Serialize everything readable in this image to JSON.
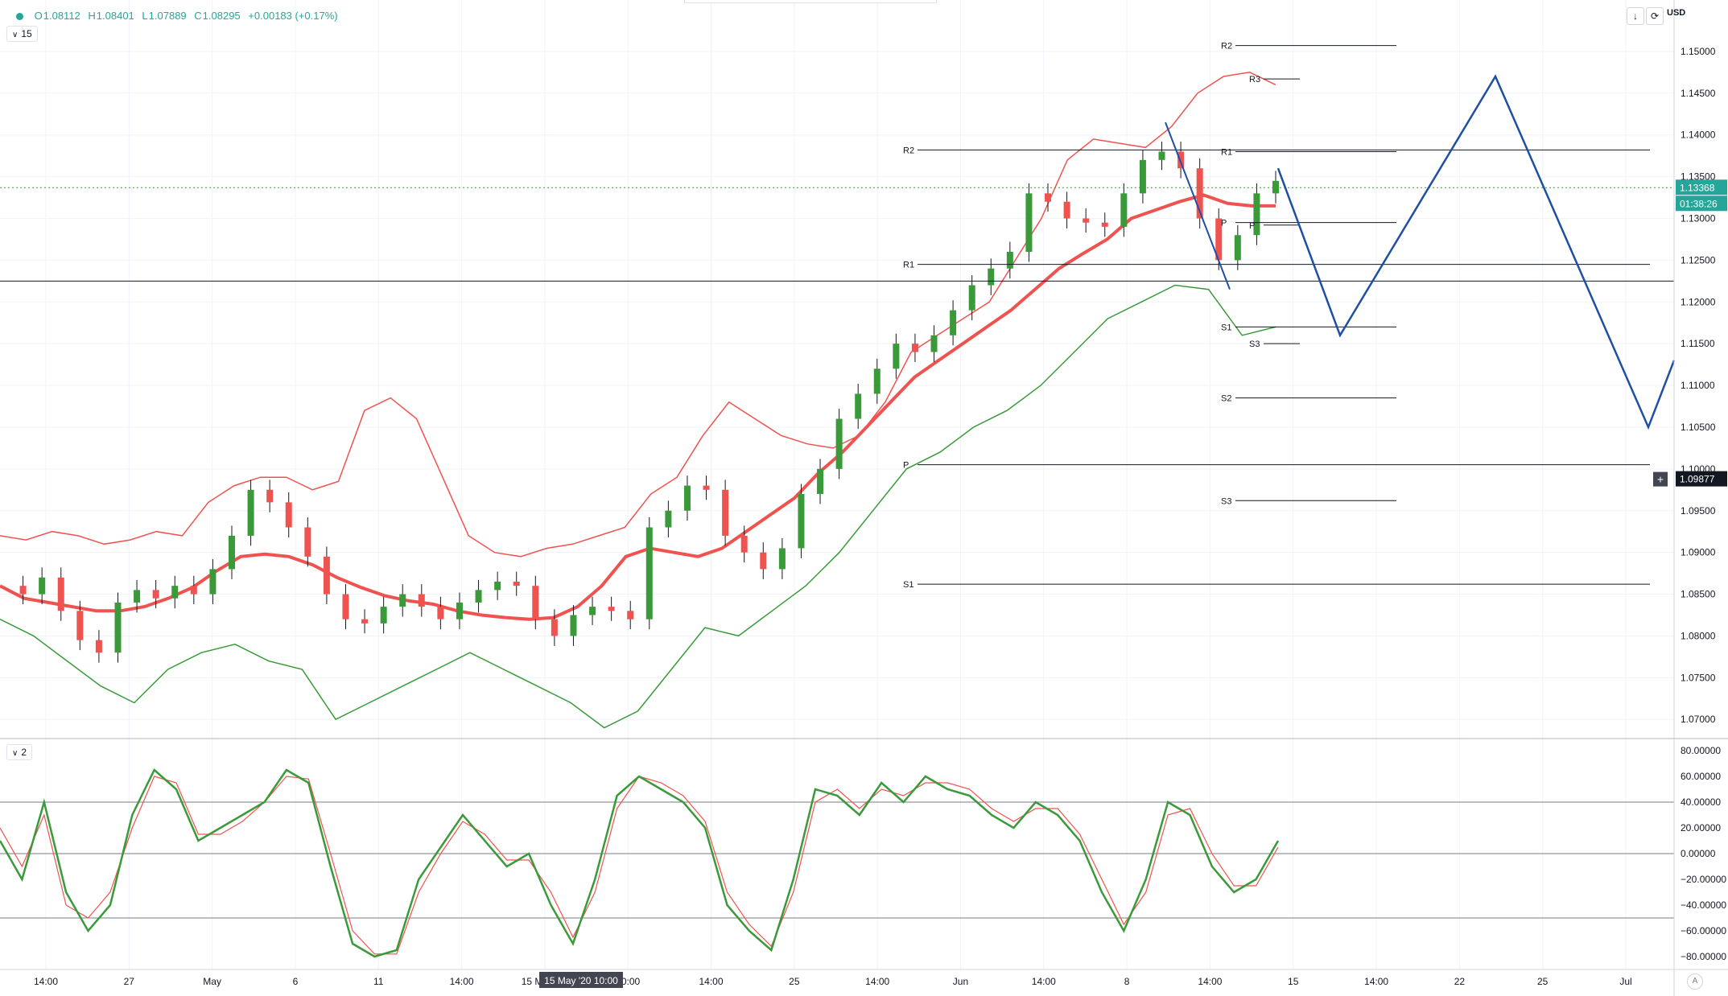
{
  "legend": {
    "open_label": "O",
    "open": "1.08112",
    "high_label": "H",
    "high": "1.08401",
    "low_label": "L",
    "low": "1.07889",
    "close_label": "C",
    "close": "1.08295",
    "change": "+0.00183 (+0.17%)"
  },
  "main_pane_label": "15",
  "osc_pane_label": "2",
  "currency": "USD",
  "toolbar": {
    "arrow_icon": "arrow-down-icon",
    "compare_icon": "compare-icon"
  },
  "price_badge": {
    "price": "1.13368",
    "countdown": "01:38:26",
    "color": "#26a69a"
  },
  "crosshair_badge": {
    "price": "1.09877",
    "color": "#131722"
  },
  "auto_label": "A",
  "colors": {
    "bull": "#3a9a3a",
    "bear": "#ef5350",
    "projection": "#1f4fa3",
    "upper_band": "#ef5350",
    "lower_band": "#3a9a3a"
  },
  "chart_data": [
    {
      "type": "candlestick",
      "ylim": [
        1.068,
        1.155
      ],
      "y_ticks": [
        "1.15000",
        "1.14500",
        "1.14000",
        "1.13500",
        "1.13000",
        "1.12500",
        "1.12000",
        "1.11500",
        "1.11000",
        "1.10500",
        "1.10000",
        "1.09500",
        "1.09000",
        "1.08500",
        "1.08000",
        "1.07500",
        "1.07000"
      ],
      "x_ticks": [
        "14:00",
        "27",
        "May",
        "6",
        "11",
        "14:00",
        "15 May '20",
        "10:00",
        "14:00",
        "25",
        "14:00",
        "Jun",
        "14:00",
        "8",
        "14:00",
        "15",
        "14:00",
        "22",
        "25",
        "Jul"
      ],
      "x_crosshair_label": [
        "15 May '20",
        "10:00"
      ],
      "series": [
        {
          "name": "price",
          "values": [
            1.086,
            1.085,
            1.087,
            1.083,
            1.0795,
            1.078,
            1.084,
            1.0855,
            1.0845,
            1.086,
            1.085,
            1.088,
            1.092,
            1.0975,
            1.096,
            1.093,
            1.0895,
            1.085,
            1.082,
            1.0815,
            1.0835,
            1.085,
            1.0835,
            1.082,
            1.084,
            1.0855,
            1.0865,
            1.086,
            1.082,
            1.08,
            1.0825,
            1.0835,
            1.083,
            1.082,
            1.093,
            1.095,
            1.098,
            1.0975,
            1.092,
            1.09,
            1.088,
            1.0905,
            1.097,
            1.1,
            1.106,
            1.109,
            1.112,
            1.115,
            1.114,
            1.116,
            1.119,
            1.122,
            1.124,
            1.126,
            1.133,
            1.132,
            1.13,
            1.1295,
            1.129,
            1.133,
            1.137,
            1.138,
            1.136,
            1.13,
            1.125,
            1.128,
            1.133,
            1.1345
          ]
        },
        {
          "name": "MA",
          "values": [
            1.086,
            1.0845,
            1.084,
            1.0835,
            1.083,
            1.083,
            1.0835,
            1.0845,
            1.0858,
            1.0878,
            1.0895,
            1.0898,
            1.0895,
            1.0885,
            1.087,
            1.0858,
            1.0848,
            1.0842,
            1.0838,
            1.083,
            1.0825,
            1.0822,
            1.082,
            1.0822,
            1.0835,
            1.086,
            1.0895,
            1.0905,
            1.09,
            1.0895,
            1.0905,
            1.0925,
            1.0945,
            1.0965,
            1.0995,
            1.102,
            1.105,
            1.108,
            1.111,
            1.113,
            1.115,
            1.117,
            1.119,
            1.1215,
            1.124,
            1.1258,
            1.1275,
            1.13,
            1.131,
            1.132,
            1.1328,
            1.1318,
            1.1315,
            1.1315
          ]
        },
        {
          "name": "upper_band",
          "values": [
            1.092,
            1.0915,
            1.0925,
            1.092,
            1.091,
            1.0915,
            1.0925,
            1.092,
            1.096,
            1.098,
            1.099,
            1.099,
            1.0975,
            1.0985,
            1.107,
            1.1085,
            1.106,
            1.099,
            1.092,
            1.09,
            1.0895,
            1.0905,
            1.091,
            1.092,
            1.093,
            1.097,
            1.099,
            1.104,
            1.108,
            1.106,
            1.104,
            1.103,
            1.1025,
            1.104,
            1.108,
            1.114,
            1.116,
            1.118,
            1.12,
            1.125,
            1.13,
            1.137,
            1.1395,
            1.139,
            1.1385,
            1.141,
            1.145,
            1.147,
            1.1475,
            1.146
          ]
        },
        {
          "name": "lower_band",
          "values": [
            1.082,
            1.08,
            1.077,
            1.074,
            1.072,
            1.076,
            1.078,
            1.079,
            1.077,
            1.076,
            1.07,
            1.072,
            1.074,
            1.076,
            1.078,
            1.076,
            1.074,
            1.072,
            1.069,
            1.071,
            1.076,
            1.081,
            1.08,
            1.083,
            1.086,
            1.09,
            1.095,
            1.1,
            1.102,
            1.105,
            1.107,
            1.11,
            1.114,
            1.118,
            1.12,
            1.122,
            1.1215,
            1.116,
            1.117
          ]
        },
        {
          "name": "projection",
          "values": [
            1.136,
            1.116,
            1.147,
            1.105,
            1.113
          ]
        }
      ],
      "levels": [
        {
          "label": "R2",
          "value": 1.1382
        },
        {
          "label": "R1",
          "value": 1.1245
        },
        {
          "label": "P",
          "value": 1.1005
        },
        {
          "label": "S1",
          "value": 1.0862
        },
        {
          "label": "R2",
          "value": 1.1507
        },
        {
          "label": "R3",
          "value": 1.1467
        },
        {
          "label": "R1",
          "value": 1.138
        },
        {
          "label": "P",
          "value": 1.1295
        },
        {
          "label": "P",
          "value": 1.1292
        },
        {
          "label": "S1",
          "value": 1.117
        },
        {
          "label": "S3",
          "value": 1.115
        },
        {
          "label": "S2",
          "value": 1.1085
        },
        {
          "label": "S3",
          "value": 1.0962
        }
      ],
      "horizontal_line": 1.1225,
      "current_price_line": 1.13368
    },
    {
      "type": "line",
      "ylim": [
        -90,
        85
      ],
      "y_ticks": [
        "80.00000",
        "60.00000",
        "40.00000",
        "20.00000",
        "0.00000",
        "−20.00000",
        "−40.00000",
        "−60.00000",
        "−80.00000"
      ],
      "levels": [
        40,
        0,
        -50
      ],
      "series": [
        {
          "name": "%K",
          "values": [
            10,
            -20,
            40,
            -30,
            -60,
            -40,
            30,
            65,
            50,
            10,
            20,
            30,
            40,
            65,
            55,
            -10,
            -70,
            -80,
            -75,
            -20,
            5,
            30,
            10,
            -10,
            0,
            -40,
            -70,
            -20,
            45,
            60,
            50,
            40,
            20,
            -40,
            -60,
            -75,
            -20,
            50,
            45,
            30,
            55,
            40,
            60,
            50,
            45,
            30,
            20,
            40,
            30,
            10,
            -30,
            -60,
            -20,
            40,
            30,
            -10,
            -30,
            -20,
            10
          ]
        },
        {
          "name": "%D",
          "values": [
            20,
            -10,
            30,
            -40,
            -50,
            -30,
            20,
            60,
            55,
            15,
            15,
            25,
            40,
            60,
            58,
            0,
            -60,
            -78,
            -78,
            -30,
            0,
            25,
            15,
            -5,
            -5,
            -30,
            -65,
            -30,
            35,
            60,
            55,
            45,
            25,
            -30,
            -55,
            -72,
            -30,
            40,
            50,
            35,
            50,
            45,
            55,
            55,
            50,
            35,
            25,
            35,
            35,
            15,
            -20,
            -55,
            -30,
            30,
            35,
            0,
            -25,
            -25,
            5
          ]
        }
      ]
    }
  ]
}
